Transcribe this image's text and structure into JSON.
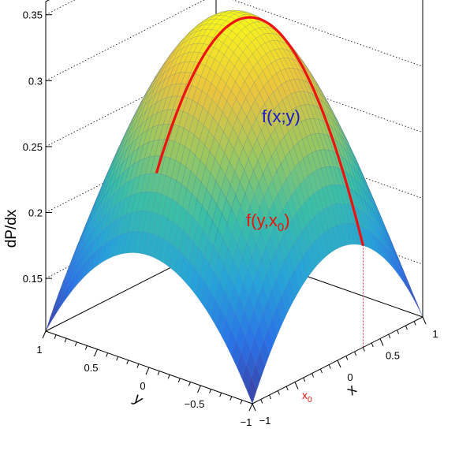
{
  "chart_data": {
    "type": "surface3d",
    "z_axis": {
      "label": "dP/dx",
      "range": [
        0.11,
        0.36
      ],
      "ticks": [
        0.15,
        0.2,
        0.25,
        0.3,
        0.35
      ],
      "tick_labels": [
        "0.15",
        "0.2",
        "0.25",
        "0.3",
        "0.35"
      ]
    },
    "x_axis": {
      "label": "x",
      "range": [
        -1,
        1
      ],
      "ticks": [
        -1,
        0,
        0.5,
        1
      ],
      "tick_labels": [
        "−1",
        "0",
        "0.5",
        "1"
      ]
    },
    "y_axis": {
      "label": "y",
      "range": [
        -1,
        1
      ],
      "ticks": [
        -1,
        -0.5,
        0,
        0.5,
        1
      ],
      "tick_labels": [
        "−1",
        "−0.5",
        "0",
        "0.5",
        "1"
      ]
    },
    "surface": {
      "label": "f(x;y)",
      "peak_value": 0.345,
      "corner_value": 0.11,
      "colormap": [
        "#3c3d9e",
        "#2a71e6",
        "#26a4d8",
        "#39bfa6",
        "#9ac760",
        "#ebc33e",
        "#f7f51c"
      ]
    },
    "curve": {
      "label_main": "f(y,x",
      "label_sub": "0",
      "label_close": ")",
      "x_value": 0.3,
      "color": "#ee1111"
    },
    "x0_marker": {
      "label_main": "x",
      "label_sub": "0"
    },
    "grid": "z dotted on back walls",
    "mesh_lines": 40
  }
}
